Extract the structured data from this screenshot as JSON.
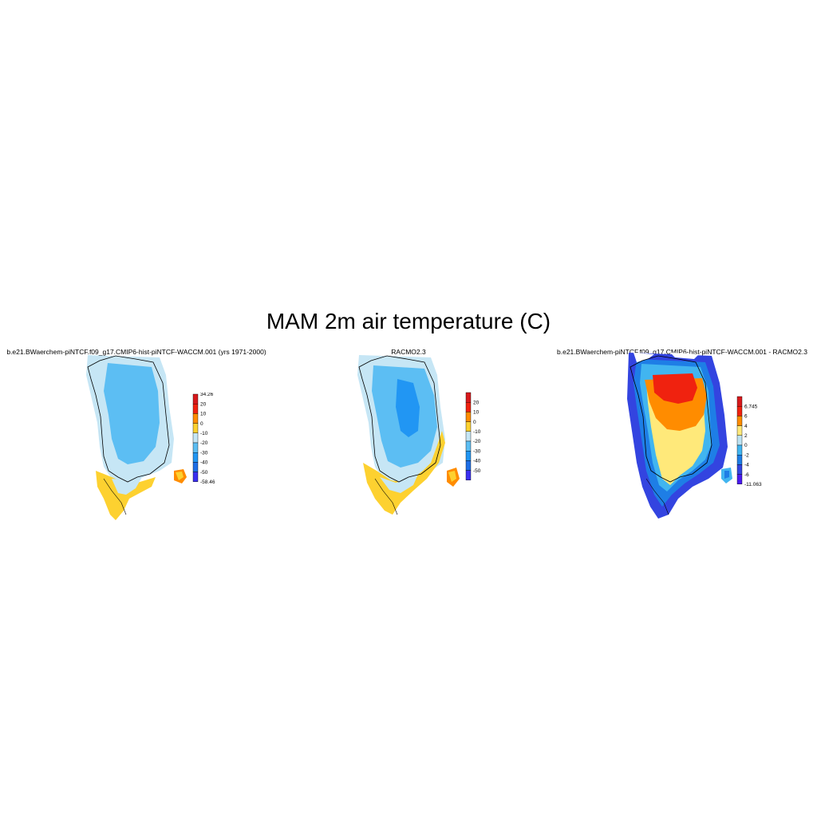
{
  "figure": {
    "title": "MAM 2m air temperature (C)"
  },
  "panels": [
    {
      "id": "model",
      "title": "b.e21.BWaerchem-piNTCF.f09_g17.CMIP6-hist-piNTCF-WACCM.001 (yrs 1971-2000)",
      "colorbar": {
        "labels": [
          "34.26",
          "20",
          "10",
          "0",
          "-10",
          "-20",
          "-30",
          "-40",
          "-50",
          "-58.46"
        ],
        "colors": [
          "#d7191c",
          "#f0220f",
          "#ff8c00",
          "#fdd130",
          "#c6e6f5",
          "#5cbef3",
          "#2196f3",
          "#1e6ee6",
          "#3a2ff0"
        ]
      }
    },
    {
      "id": "obs",
      "title": "RACMO2.3",
      "colorbar": {
        "labels": [
          "20",
          "10",
          "0",
          "-10",
          "-20",
          "-30",
          "-40",
          "-50"
        ],
        "colors": [
          "#d7191c",
          "#f0220f",
          "#ff8c00",
          "#fdd130",
          "#c6e6f5",
          "#5cbef3",
          "#2196f3",
          "#1e6ee6",
          "#3a2ff0"
        ]
      }
    },
    {
      "id": "diff",
      "title": "b.e21.BWaerchem-piNTCF.f09_g17.CMIP6-hist-piNTCF-WACCM.001 - RACMO2.3",
      "colorbar": {
        "labels": [
          "6.745",
          "6",
          "4",
          "2",
          "0",
          "-2",
          "-4",
          "-6",
          "-11.063"
        ],
        "colors": [
          "#d7191c",
          "#f0220f",
          "#ff8c00",
          "#ffe97a",
          "#bde3f2",
          "#41b5f0",
          "#1e7ee6",
          "#3344e0",
          "#4a1af0"
        ]
      }
    }
  ]
}
